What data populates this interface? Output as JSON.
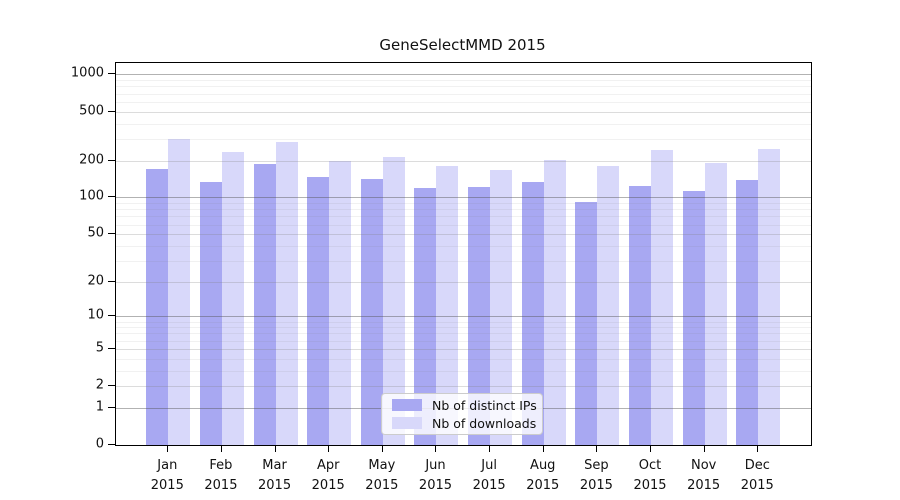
{
  "title": "GeneSelectMMD 2015",
  "chart_data": {
    "type": "bar",
    "title": "GeneSelectMMD 2015",
    "scale": "log1p",
    "categories": [
      "Jan",
      "Feb",
      "Mar",
      "Apr",
      "May",
      "Jun",
      "Jul",
      "Aug",
      "Sep",
      "Oct",
      "Nov",
      "Dec"
    ],
    "year_label": "2015",
    "series": [
      {
        "name": "Nb of distinct IPs",
        "color": "#a8a8f2",
        "values": [
          172,
          134,
          188,
          147,
          142,
          119,
          122,
          133,
          92,
          123,
          112,
          138
        ]
      },
      {
        "name": "Nb of downloads",
        "color": "#d8d8fa",
        "values": [
          300,
          236,
          281,
          200,
          213,
          181,
          169,
          202,
          180,
          244,
          191,
          250
        ]
      }
    ],
    "y_ticks": [
      0,
      1,
      2,
      5,
      10,
      20,
      50,
      100,
      200,
      500,
      1000
    ],
    "ylim": [
      0,
      1400
    ],
    "grid": true,
    "legend_position": "bottom-center-inside",
    "xlabel": "",
    "ylabel": ""
  },
  "colors": {
    "bar_ips": "#a8a8f2",
    "bar_downloads": "#d8d8fa",
    "grid_major": "#b2b2b2",
    "grid_minor": "#f2f2f2",
    "axis": "#000000",
    "background": "#ffffff"
  }
}
